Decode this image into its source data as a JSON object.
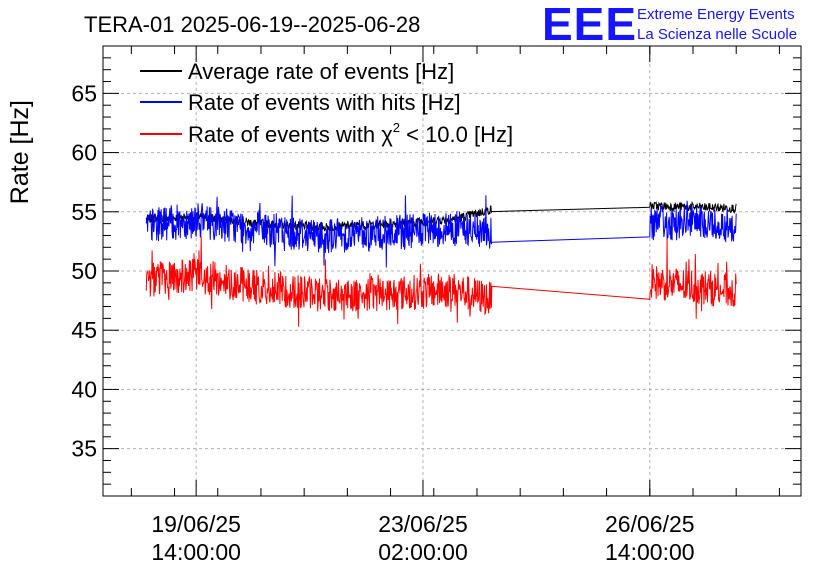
{
  "header": {
    "title": "TERA-01 2025-06-19--2025-06-28",
    "logo_text": "EEE",
    "logo_line1": "Extreme Energy Events",
    "logo_line2": "La Scienza nelle Scuole"
  },
  "chart_data": {
    "type": "line",
    "title": "TERA-01 2025-06-19--2025-06-28",
    "xlabel": "",
    "ylabel": "Rate [Hz]",
    "ylim": [
      31,
      69
    ],
    "xlim": [
      "2025-06-18T03:30:00",
      "2025-06-28T22:00:00"
    ],
    "yticks": [
      35,
      40,
      45,
      50,
      55,
      60,
      65
    ],
    "xticks": [
      {
        "line1": "19/06/25",
        "line2": "14:00:00",
        "t": "2025-06-19T14:00:00"
      },
      {
        "line1": "23/06/25",
        "line2": "02:00:00",
        "t": "2025-06-23T02:00:00"
      },
      {
        "line1": "26/06/25",
        "line2": "14:00:00",
        "t": "2025-06-26T14:00:00"
      }
    ],
    "grid": true,
    "legend_position": "top-left",
    "segments": [
      {
        "start": "2025-06-18T19:30:00",
        "end": "2025-06-24T03:30:00"
      },
      {
        "start": "2025-06-26T14:00:00",
        "end": "2025-06-27T22:00:00"
      }
    ],
    "series": [
      {
        "name": "Average rate of events [Hz]",
        "color": "#000000",
        "values": [
          {
            "t": "2025-06-18T19:30:00",
            "y": 54.4
          },
          {
            "t": "2025-06-19T14:00:00",
            "y": 54.6
          },
          {
            "t": "2025-06-20T14:00:00",
            "y": 54.0
          },
          {
            "t": "2025-06-21T14:00:00",
            "y": 53.7
          },
          {
            "t": "2025-06-22T14:00:00",
            "y": 54.0
          },
          {
            "t": "2025-06-23T14:00:00",
            "y": 54.4
          },
          {
            "t": "2025-06-24T03:30:00",
            "y": 55.2
          },
          {
            "t": "2025-06-26T14:00:00",
            "y": 55.5
          },
          {
            "t": "2025-06-27T22:00:00",
            "y": 55.3
          }
        ]
      },
      {
        "name": "Rate of events with hits [Hz]",
        "color": "#0000ff",
        "values": [
          {
            "t": "2025-06-18T19:30:00",
            "y": 53.8
          },
          {
            "t": "2025-06-19T14:00:00",
            "y": 54.3
          },
          {
            "t": "2025-06-20T14:00:00",
            "y": 53.5
          },
          {
            "t": "2025-06-21T14:00:00",
            "y": 53.0
          },
          {
            "t": "2025-06-22T14:00:00",
            "y": 53.2
          },
          {
            "t": "2025-06-23T14:00:00",
            "y": 53.6
          },
          {
            "t": "2025-06-24T03:30:00",
            "y": 53.2
          },
          {
            "t": "2025-06-26T14:00:00",
            "y": 54.1
          },
          {
            "t": "2025-06-27T22:00:00",
            "y": 53.9
          }
        ]
      },
      {
        "name": "Rate of events with χ2 < 10.0 [Hz]",
        "color": "#ff0000",
        "values": [
          {
            "t": "2025-06-18T19:30:00",
            "y": 49.2
          },
          {
            "t": "2025-06-19T14:00:00",
            "y": 49.6
          },
          {
            "t": "2025-06-20T14:00:00",
            "y": 48.6
          },
          {
            "t": "2025-06-21T14:00:00",
            "y": 48.0
          },
          {
            "t": "2025-06-22T14:00:00",
            "y": 48.1
          },
          {
            "t": "2025-06-23T14:00:00",
            "y": 48.4
          },
          {
            "t": "2025-06-24T03:30:00",
            "y": 47.6
          },
          {
            "t": "2025-06-26T14:00:00",
            "y": 49.1
          },
          {
            "t": "2025-06-27T22:00:00",
            "y": 48.3
          }
        ]
      }
    ],
    "legend": {
      "avg": "Average rate of events [Hz]",
      "hits_main": "Rate of events with hits [Hz]",
      "chi_pre": "Rate of events with χ",
      "chi_sup": "2",
      "chi_post": " < 10.0 [Hz]"
    },
    "noise_band_hz": 1.5
  }
}
